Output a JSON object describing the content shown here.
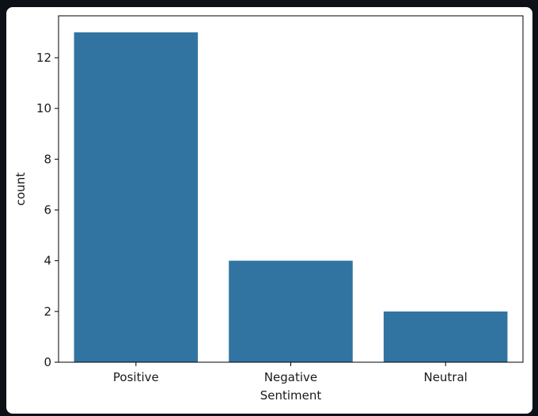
{
  "chart_data": {
    "type": "bar",
    "categories": [
      "Positive",
      "Negative",
      "Neutral"
    ],
    "values": [
      13,
      4,
      2
    ],
    "title": "",
    "xlabel": "Sentiment",
    "ylabel": "count",
    "ylim": [
      0,
      13.65
    ],
    "yticks": [
      0,
      2,
      4,
      6,
      8,
      10,
      12
    ],
    "bar_color": "#3274a1",
    "grid": false
  }
}
